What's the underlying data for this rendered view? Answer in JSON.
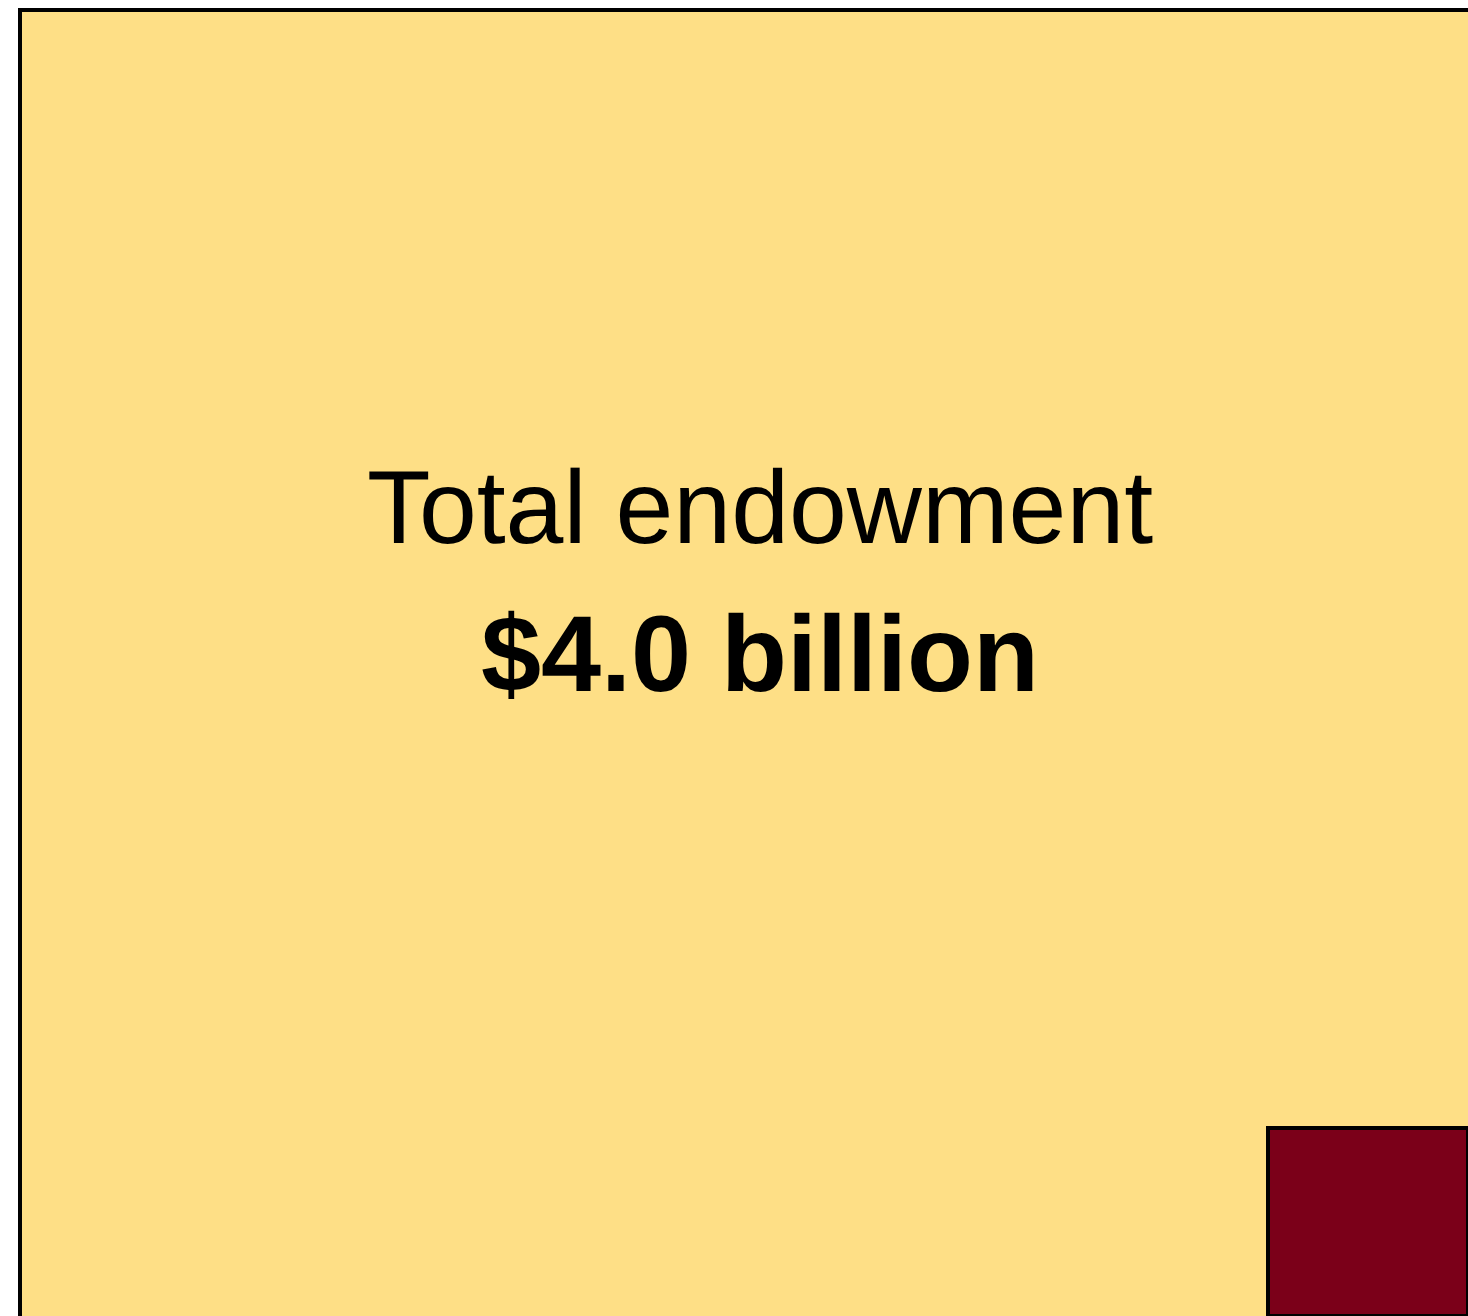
{
  "chart_data": {
    "type": "other",
    "categories": [
      "Total endowment",
      null
    ],
    "values": [
      4.0,
      null
    ],
    "value_labels": [
      "$4.0 billion",
      null
    ],
    "colors": [
      "#fedf86",
      "#7b0019"
    ]
  }
}
